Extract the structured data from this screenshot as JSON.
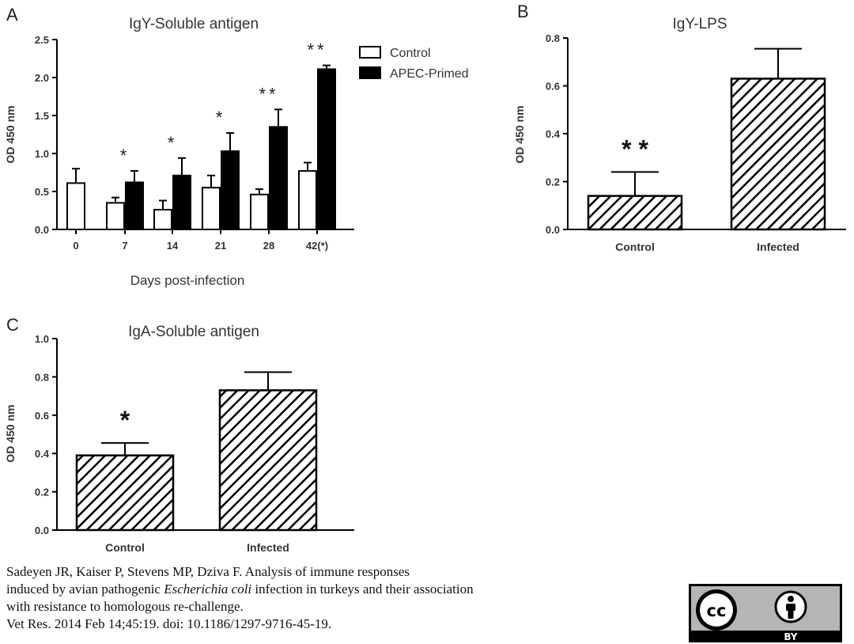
{
  "colors": {
    "control_fill": "#ffffff",
    "primed_fill": "#000000",
    "hatch": "#000000",
    "axis": "#000000",
    "text": "#333333",
    "badge_bg": "#b5b5b5",
    "badge_dark": "#000000"
  },
  "chart_data": [
    {
      "panel": "A",
      "type": "bar",
      "title": "IgY-Soluble antigen",
      "xlabel": "Days post-infection",
      "ylabel": "OD 450 nm",
      "ylim": [
        0,
        2.5
      ],
      "yticks": [
        "0.0",
        "0.5",
        "1.0",
        "1.5",
        "2.0",
        "2.5"
      ],
      "categories": [
        "0",
        "7",
        "14",
        "21",
        "28",
        "42(*)"
      ],
      "legend_position": "top-right",
      "series": [
        {
          "name": "Control",
          "values": [
            0.61,
            0.35,
            0.26,
            0.55,
            0.46,
            0.77
          ],
          "errors": [
            0.19,
            0.07,
            0.12,
            0.16,
            0.07,
            0.11
          ]
        },
        {
          "name": "APEC-Primed",
          "values": [
            null,
            0.62,
            0.71,
            1.03,
            1.35,
            2.11
          ],
          "errors": [
            null,
            0.15,
            0.23,
            0.24,
            0.23,
            0.05
          ]
        }
      ],
      "significance": [
        "",
        "*",
        "*",
        "*",
        "**",
        "**"
      ]
    },
    {
      "panel": "B",
      "type": "bar",
      "title": "IgY-LPS",
      "xlabel": "",
      "ylabel": "OD 450 nm",
      "ylim": [
        0,
        0.8
      ],
      "yticks": [
        "0.0",
        "0.2",
        "0.4",
        "0.6",
        "0.8"
      ],
      "categories": [
        "Control",
        "Infected"
      ],
      "values": [
        0.14,
        0.63
      ],
      "errors": [
        0.1,
        0.125
      ],
      "fill": "hatched",
      "significance": [
        "* *",
        ""
      ]
    },
    {
      "panel": "C",
      "type": "bar",
      "title": "IgA-Soluble antigen",
      "xlabel": "",
      "ylabel": "OD 450 nm",
      "ylim": [
        0,
        1.0
      ],
      "yticks": [
        "0.0",
        "0.2",
        "0.4",
        "0.6",
        "0.8",
        "1.0"
      ],
      "categories": [
        "Control",
        "Infected"
      ],
      "values": [
        0.39,
        0.73
      ],
      "errors": [
        0.065,
        0.095
      ],
      "fill": "hatched",
      "significance": [
        "*",
        ""
      ]
    }
  ],
  "citation": {
    "line1": "Sadeyen JR, Kaiser P, Stevens MP, Dziva F. Analysis of immune responses",
    "line2_pre": "induced by avian pathogenic ",
    "line2_italic": "Escherichia coli",
    "line2_post": " infection in turkeys and their association",
    "line3": "with resistance to homologous re-challenge.",
    "line4": "Vet Res. 2014 Feb 14;45:19. doi: 10.1186/1297-9716-45-19."
  },
  "license_badge": {
    "cc_label": "cc",
    "by_label": "BY",
    "icons": [
      "creative-commons-icon",
      "attribution-person-icon"
    ]
  }
}
